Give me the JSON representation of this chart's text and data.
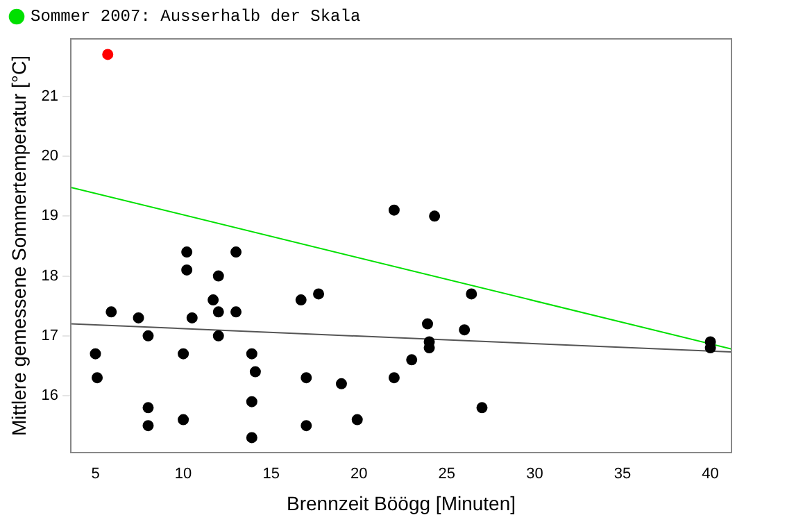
{
  "chart_data": {
    "type": "scatter",
    "xlabel": "Brennzeit Böögg [Minuten]",
    "ylabel": "Mittlere gemessene Sommertemperatur [°C]",
    "xlim": [
      3.6,
      41.2
    ],
    "ylim": [
      15.05,
      21.96
    ],
    "xticks": [
      5,
      10,
      15,
      20,
      25,
      30,
      35,
      40
    ],
    "yticks": [
      16,
      17,
      18,
      19,
      20,
      21
    ],
    "grid": false,
    "legend": "top left",
    "series": [
      {
        "type": "scatter",
        "marker": "circle",
        "color": "#000000",
        "x": [
          5,
          5.1,
          5.9,
          7.45,
          8,
          8,
          8,
          10,
          10,
          10.2,
          10.2,
          10.5,
          11.7,
          12,
          12,
          12,
          13,
          13,
          13.9,
          14.1,
          13.9,
          13.9,
          16.7,
          17.7,
          17,
          17,
          19,
          19.9,
          22,
          23,
          22,
          24.3,
          26.4,
          23.9,
          26,
          24,
          24,
          27,
          40,
          40
        ],
        "values": [
          16.7,
          16.3,
          17.4,
          17.3,
          17,
          15.8,
          15.5,
          16.7,
          15.6,
          18.4,
          18.1,
          17.3,
          17.6,
          18,
          17.4,
          17,
          18.4,
          17.4,
          16.7,
          16.4,
          15.9,
          15.3,
          17.6,
          17.7,
          16.3,
          15.5,
          16.2,
          15.6,
          16.3,
          16.6,
          19.1,
          19,
          17.7,
          17.2,
          17.1,
          16.9,
          16.8,
          15.8,
          16.9,
          16.8
        ]
      },
      {
        "type": "scatter",
        "marker": "circle",
        "color": "#ff0000",
        "x": [
          5.7
        ],
        "values": [
          21.7
        ]
      },
      {
        "type": "line",
        "marker": "none",
        "name": "Sommer 2007: Ausserhalb der Skala",
        "color": "#00e000",
        "x": [
          3.6,
          41.2
        ],
        "values": [
          19.48,
          16.78
        ]
      },
      {
        "type": "line",
        "marker": "none",
        "color": "#555555",
        "x": [
          3.6,
          41.2
        ],
        "values": [
          17.2,
          16.73
        ]
      }
    ]
  }
}
